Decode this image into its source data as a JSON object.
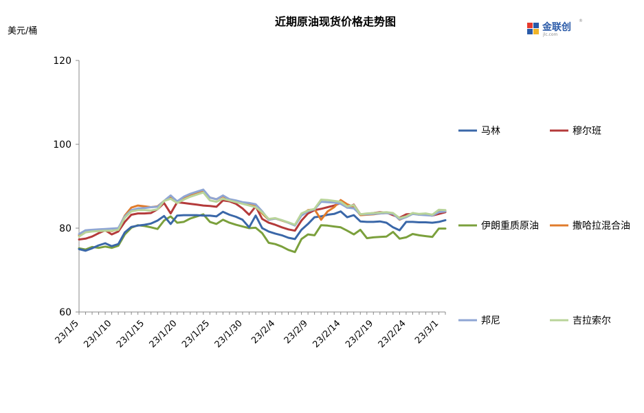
{
  "chart_data": {
    "type": "line",
    "title": "近期原油现货价格走势图",
    "ylabel": "美元/桶",
    "xlabel": "",
    "ylim": [
      60,
      120
    ],
    "yticks": [
      60,
      80,
      100,
      120
    ],
    "grid": false,
    "legend_position": "right",
    "x": [
      "23/1/5",
      "23/1/6",
      "23/1/7",
      "23/1/8",
      "23/1/9",
      "23/1/10",
      "23/1/11",
      "23/1/12",
      "23/1/13",
      "23/1/14",
      "23/1/15",
      "23/1/16",
      "23/1/17",
      "23/1/18",
      "23/1/19",
      "23/1/20",
      "23/1/21",
      "23/1/22",
      "23/1/23",
      "23/1/24",
      "23/1/25",
      "23/1/26",
      "23/1/27",
      "23/1/28",
      "23/1/29",
      "23/1/30",
      "23/1/31",
      "23/2/1",
      "23/2/2",
      "23/2/3",
      "23/2/4",
      "23/2/5",
      "23/2/6",
      "23/2/7",
      "23/2/8",
      "23/2/9",
      "23/2/10",
      "23/2/11",
      "23/2/12",
      "23/2/13",
      "23/2/14",
      "23/2/15",
      "23/2/16",
      "23/2/17",
      "23/2/18",
      "23/2/19",
      "23/2/20",
      "23/2/21",
      "23/2/22",
      "23/2/23",
      "23/2/24",
      "23/2/25",
      "23/2/26",
      "23/2/27",
      "23/2/28",
      "23/3/1",
      "23/3/2"
    ],
    "xticks": [
      "23/1/5",
      "23/1/10",
      "23/1/15",
      "23/1/20",
      "23/1/25",
      "23/1/30",
      "23/2/4",
      "23/2/9",
      "23/2/14",
      "23/2/19",
      "23/2/24",
      "23/3/1"
    ],
    "series": [
      {
        "name": "马林",
        "color": "#3a67a8",
        "values": [
          75.0,
          74.6,
          75.2,
          75.9,
          76.4,
          75.7,
          76.2,
          79.0,
          80.3,
          80.6,
          80.8,
          81.1,
          81.8,
          82.9,
          81.0,
          83.0,
          83.1,
          83.1,
          83.1,
          83.0,
          83.0,
          82.8,
          83.9,
          83.2,
          82.7,
          82.0,
          80.2,
          83.0,
          80.0,
          79.2,
          78.7,
          78.3,
          77.7,
          77.4,
          79.6,
          81.0,
          82.6,
          82.8,
          83.2,
          83.4,
          84.0,
          82.6,
          83.1,
          81.6,
          81.5,
          81.5,
          81.6,
          81.3,
          80.2,
          79.5,
          81.5,
          81.5,
          81.4,
          81.4,
          81.3,
          81.5,
          81.9
        ]
      },
      {
        "name": "穆尔班",
        "color": "#b43a3a",
        "values": [
          77.3,
          77.5,
          78.0,
          78.8,
          79.5,
          78.5,
          79.2,
          81.5,
          83.2,
          83.5,
          83.5,
          83.6,
          84.5,
          86.0,
          83.5,
          86.2,
          86.0,
          85.8,
          85.6,
          85.4,
          85.3,
          85.1,
          86.6,
          86.4,
          85.8,
          84.7,
          83.2,
          85.2,
          82.2,
          81.3,
          80.8,
          80.2,
          79.7,
          79.4,
          81.8,
          83.5,
          84.3,
          84.6,
          85.0,
          85.4,
          86.0,
          84.9,
          85.6,
          83.3,
          83.4,
          83.6,
          83.8,
          83.7,
          83.1,
          82.5,
          83.3,
          83.4,
          83.3,
          83.2,
          83.0,
          83.4,
          83.8
        ]
      },
      {
        "name": "伊朗重质原油",
        "color": "#7ba03c",
        "values": [
          75.2,
          74.9,
          75.5,
          75.3,
          75.6,
          75.3,
          75.8,
          78.5,
          80.1,
          80.7,
          80.5,
          80.2,
          79.8,
          81.8,
          82.8,
          81.3,
          81.5,
          82.3,
          82.8,
          83.3,
          81.5,
          81.0,
          82.0,
          81.3,
          80.8,
          80.4,
          80.0,
          80.1,
          78.8,
          76.5,
          76.2,
          75.6,
          74.8,
          74.3,
          77.4,
          78.5,
          78.3,
          80.7,
          80.6,
          80.4,
          80.2,
          79.4,
          78.5,
          79.6,
          77.6,
          77.8,
          77.9,
          78.0,
          79.1,
          77.5,
          77.8,
          78.6,
          78.3,
          78.1,
          77.9,
          79.9,
          79.9
        ]
      },
      {
        "name": "撒哈拉混合油",
        "color": "#e07c2c",
        "values": [
          78.3,
          79.2,
          79.3,
          79.4,
          79.4,
          79.3,
          79.8,
          83.0,
          84.9,
          85.4,
          85.2,
          85.0,
          85.2,
          86.5,
          87.5,
          86.0,
          87.3,
          88.0,
          88.5,
          89.0,
          87.3,
          86.9,
          87.6,
          86.8,
          86.4,
          86.0,
          85.6,
          85.2,
          83.5,
          82.0,
          82.3,
          81.8,
          81.3,
          80.7,
          83.2,
          84.3,
          84.5,
          82.0,
          84.0,
          85.0,
          86.7,
          85.7,
          85.0,
          83.1,
          83.2,
          83.3,
          83.5,
          83.6,
          83.5,
          82.0,
          82.7,
          83.6,
          83.2,
          83.4,
          83.2,
          84.1,
          84.2
        ]
      },
      {
        "name": "邦尼",
        "color": "#8fa6d4",
        "values": [
          78.6,
          79.5,
          79.6,
          79.7,
          79.8,
          79.9,
          80.0,
          82.8,
          84.3,
          84.7,
          84.8,
          85.0,
          85.1,
          86.5,
          87.8,
          86.4,
          87.5,
          88.2,
          88.7,
          89.2,
          87.3,
          86.9,
          87.8,
          86.9,
          86.6,
          86.2,
          86.0,
          85.7,
          84.0,
          82.0,
          82.3,
          81.9,
          81.3,
          80.6,
          83.0,
          84.0,
          84.5,
          86.3,
          86.2,
          86.1,
          85.8,
          84.9,
          84.7,
          83.3,
          83.3,
          83.4,
          83.5,
          83.6,
          83.4,
          82.1,
          82.6,
          83.4,
          83.2,
          83.1,
          83.0,
          83.8,
          84.0
        ]
      },
      {
        "name": "吉拉索尔",
        "color": "#b9d49a",
        "values": [
          78.0,
          79.0,
          79.2,
          79.3,
          79.4,
          79.4,
          79.6,
          82.5,
          84.0,
          84.3,
          84.3,
          84.2,
          84.5,
          86.5,
          87.0,
          86.0,
          86.8,
          87.5,
          88.0,
          88.5,
          86.6,
          86.3,
          87.0,
          86.6,
          86.2,
          85.8,
          85.4,
          85.0,
          83.8,
          82.2,
          82.4,
          81.9,
          81.4,
          80.8,
          83.5,
          84.2,
          84.6,
          86.8,
          86.7,
          86.5,
          86.3,
          85.2,
          85.5,
          83.3,
          83.5,
          83.6,
          83.7,
          83.8,
          83.6,
          82.4,
          82.8,
          83.6,
          83.4,
          83.5,
          83.2,
          84.4,
          84.3
        ]
      }
    ]
  },
  "logo": {
    "brand_text": "金联创",
    "sub_text": "jlc.com",
    "mark": "®"
  }
}
